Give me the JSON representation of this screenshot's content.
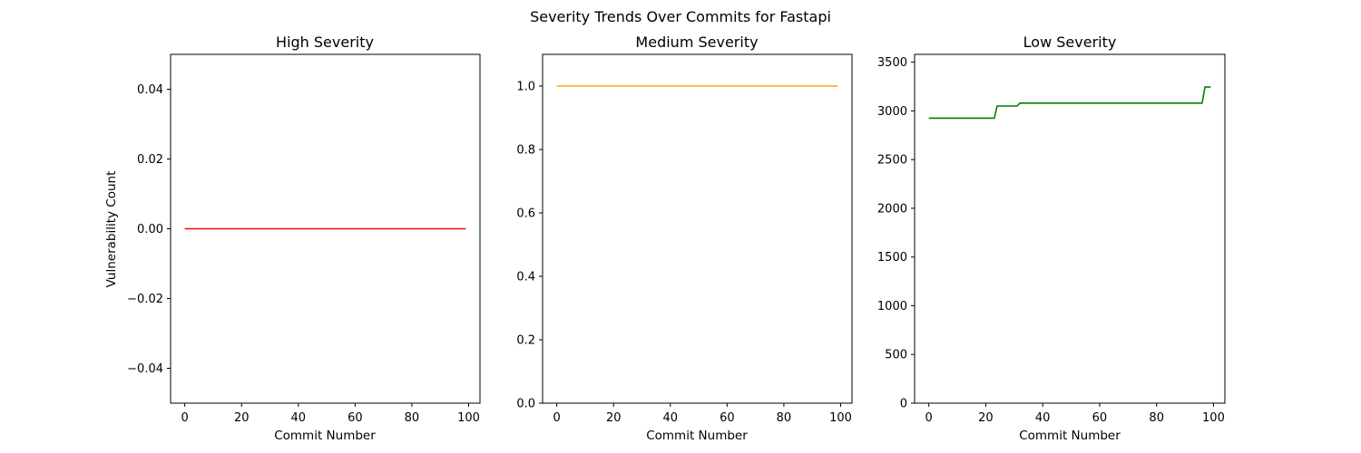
{
  "figure": {
    "suptitle": "Severity Trends Over Commits for Fastapi"
  },
  "chart_data": [
    {
      "type": "line",
      "title": "High Severity",
      "xlabel": "Commit Number",
      "ylabel": "Vulnerability Count",
      "xlim": [
        -5,
        104
      ],
      "ylim": [
        -0.05,
        0.05
      ],
      "xticks": [
        0,
        20,
        40,
        60,
        80,
        100
      ],
      "xtick_labels": [
        "0",
        "20",
        "40",
        "60",
        "80",
        "100"
      ],
      "yticks": [
        -0.04,
        -0.02,
        0.0,
        0.02,
        0.04
      ],
      "ytick_labels": [
        "−0.04",
        "−0.02",
        "0.00",
        "0.02",
        "0.04"
      ],
      "grid": false,
      "series": [
        {
          "color": "#ff0000",
          "x": [
            0,
            99
          ],
          "y": [
            0,
            0
          ]
        }
      ]
    },
    {
      "type": "line",
      "title": "Medium Severity",
      "xlabel": "Commit Number",
      "ylabel": "",
      "xlim": [
        -5,
        104
      ],
      "ylim": [
        0,
        1.1
      ],
      "xticks": [
        0,
        20,
        40,
        60,
        80,
        100
      ],
      "xtick_labels": [
        "0",
        "20",
        "40",
        "60",
        "80",
        "100"
      ],
      "yticks": [
        0.0,
        0.2,
        0.4,
        0.6,
        0.8,
        1.0
      ],
      "ytick_labels": [
        "0.0",
        "0.2",
        "0.4",
        "0.6",
        "0.8",
        "1.0"
      ],
      "grid": false,
      "series": [
        {
          "color": "#ffa500",
          "x": [
            0,
            99
          ],
          "y": [
            1,
            1
          ]
        }
      ]
    },
    {
      "type": "line",
      "title": "Low Severity",
      "xlabel": "Commit Number",
      "ylabel": "",
      "xlim": [
        -5,
        104
      ],
      "ylim": [
        0,
        3580
      ],
      "xticks": [
        0,
        20,
        40,
        60,
        80,
        100
      ],
      "xtick_labels": [
        "0",
        "20",
        "40",
        "60",
        "80",
        "100"
      ],
      "yticks": [
        0,
        500,
        1000,
        1500,
        2000,
        2500,
        3000,
        3500
      ],
      "ytick_labels": [
        "0",
        "500",
        "1000",
        "1500",
        "2000",
        "2500",
        "3000",
        "3500"
      ],
      "grid": false,
      "series": [
        {
          "color": "#008000",
          "x": [
            0,
            23,
            24,
            31,
            32,
            96,
            97,
            99
          ],
          "y": [
            2925,
            2925,
            3050,
            3050,
            3080,
            3080,
            3245,
            3245
          ]
        }
      ]
    }
  ]
}
